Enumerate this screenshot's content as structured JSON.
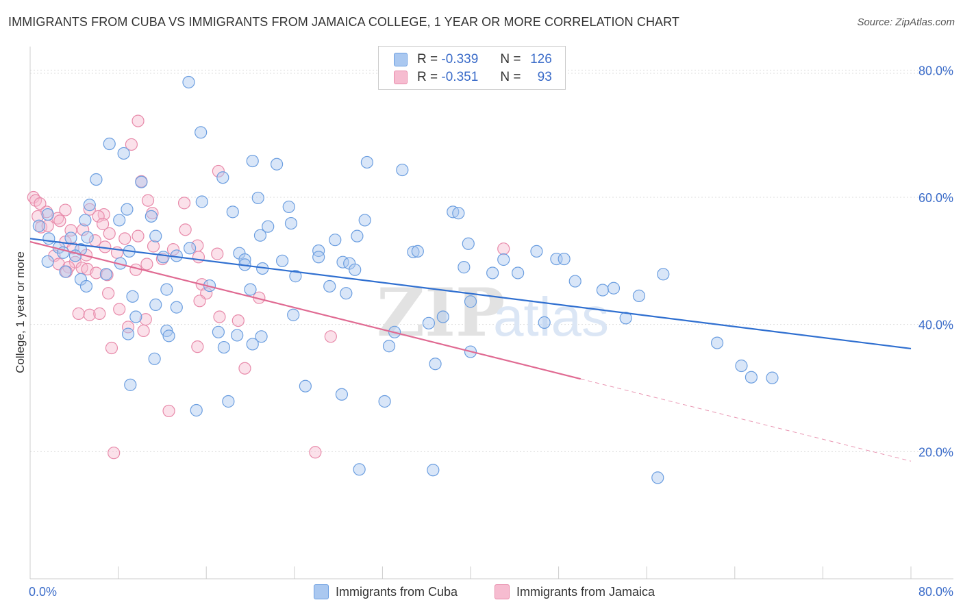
{
  "title": "IMMIGRANTS FROM CUBA VS IMMIGRANTS FROM JAMAICA COLLEGE, 1 YEAR OR MORE CORRELATION CHART",
  "source": "Source: ZipAtlas.com",
  "watermark": {
    "zip": "ZIP",
    "atlas": "atlas"
  },
  "legend": {
    "cuba": {
      "r_label": "R =",
      "r_value": "-0.339",
      "n_label": "N =",
      "n_value": "126"
    },
    "jamaica": {
      "r_label": "R =",
      "r_value": "-0.351",
      "n_label": "N =",
      "n_value": "93"
    }
  },
  "bottom_legend": {
    "cuba": "Immigrants from Cuba",
    "jamaica": "Immigrants from Jamaica"
  },
  "colors": {
    "cuba_fill": "#aac8f0",
    "cuba_stroke": "#6b9ee0",
    "cuba_line": "#2f6fd0",
    "jamaica_fill": "#f6bcd0",
    "jamaica_stroke": "#e88aaa",
    "jamaica_line": "#e06a92",
    "axis_text": "#3b6cc9",
    "grid": "#dddddd"
  },
  "chart_data": {
    "type": "scatter",
    "title": "IMMIGRANTS FROM CUBA VS IMMIGRANTS FROM JAMAICA COLLEGE, 1 YEAR OR MORE CORRELATION CHART",
    "xlabel": "",
    "ylabel": "College, 1 year or more",
    "xlim": [
      0,
      80
    ],
    "ylim": [
      0,
      85
    ],
    "x_tick_labels": [
      "0.0%",
      "80.0%"
    ],
    "y_ticks": [
      20,
      40,
      60,
      80
    ],
    "y_tick_labels": [
      "20.0%",
      "40.0%",
      "60.0%",
      "80.0%"
    ],
    "legend_position": "top-center",
    "series": [
      {
        "name": "Immigrants from Cuba",
        "r": -0.339,
        "n": 126,
        "trend": {
          "x": [
            0,
            80
          ],
          "y": [
            53.5,
            36.2
          ],
          "dashed_from": null
        },
        "points": [
          [
            14.4,
            78.1
          ],
          [
            15.5,
            70.2
          ],
          [
            7.2,
            68.4
          ],
          [
            8.5,
            66.9
          ],
          [
            20.2,
            65.7
          ],
          [
            22.4,
            65.2
          ],
          [
            30.6,
            65.5
          ],
          [
            33.8,
            64.3
          ],
          [
            17.5,
            63.1
          ],
          [
            6.0,
            62.8
          ],
          [
            10.1,
            62.4
          ],
          [
            20.7,
            59.9
          ],
          [
            15.6,
            59.3
          ],
          [
            23.5,
            58.5
          ],
          [
            5.4,
            58.8
          ],
          [
            8.8,
            58.1
          ],
          [
            18.4,
            57.7
          ],
          [
            38.4,
            57.7
          ],
          [
            38.9,
            57.5
          ],
          [
            1.6,
            57.3
          ],
          [
            11.0,
            57.0
          ],
          [
            5.0,
            56.4
          ],
          [
            8.1,
            56.4
          ],
          [
            30.4,
            56.4
          ],
          [
            23.7,
            55.9
          ],
          [
            21.6,
            55.4
          ],
          [
            0.8,
            55.5
          ],
          [
            11.4,
            53.9
          ],
          [
            20.9,
            54.0
          ],
          [
            29.7,
            53.9
          ],
          [
            27.7,
            53.3
          ],
          [
            1.7,
            53.5
          ],
          [
            3.7,
            53.6
          ],
          [
            5.2,
            53.7
          ],
          [
            39.8,
            52.7
          ],
          [
            2.6,
            52.1
          ],
          [
            4.6,
            51.8
          ],
          [
            9.0,
            51.5
          ],
          [
            14.5,
            52.0
          ],
          [
            19.0,
            51.2
          ],
          [
            26.2,
            51.6
          ],
          [
            34.8,
            51.4
          ],
          [
            35.2,
            51.5
          ],
          [
            46.0,
            51.5
          ],
          [
            3.0,
            51.3
          ],
          [
            4.1,
            50.8
          ],
          [
            12.1,
            50.6
          ],
          [
            13.3,
            50.8
          ],
          [
            19.5,
            50.2
          ],
          [
            22.9,
            50.0
          ],
          [
            26.2,
            50.6
          ],
          [
            28.4,
            49.8
          ],
          [
            43.0,
            50.2
          ],
          [
            47.8,
            50.3
          ],
          [
            48.5,
            50.3
          ],
          [
            1.6,
            49.9
          ],
          [
            8.2,
            49.6
          ],
          [
            19.5,
            49.4
          ],
          [
            21.1,
            48.8
          ],
          [
            29.0,
            49.6
          ],
          [
            29.5,
            48.6
          ],
          [
            39.4,
            49.0
          ],
          [
            42.0,
            48.1
          ],
          [
            44.3,
            48.1
          ],
          [
            57.5,
            47.9
          ],
          [
            3.2,
            48.3
          ],
          [
            6.9,
            47.9
          ],
          [
            24.1,
            47.6
          ],
          [
            49.5,
            46.8
          ],
          [
            4.6,
            47.1
          ],
          [
            5.1,
            46.0
          ],
          [
            12.4,
            45.5
          ],
          [
            16.3,
            46.1
          ],
          [
            20.0,
            45.5
          ],
          [
            27.2,
            46.0
          ],
          [
            28.7,
            44.9
          ],
          [
            52.0,
            45.4
          ],
          [
            53.0,
            45.7
          ],
          [
            55.3,
            44.5
          ],
          [
            9.3,
            44.4
          ],
          [
            11.4,
            43.1
          ],
          [
            13.3,
            42.7
          ],
          [
            40.0,
            43.6
          ],
          [
            23.9,
            41.5
          ],
          [
            9.6,
            41.2
          ],
          [
            37.5,
            41.2
          ],
          [
            36.2,
            40.2
          ],
          [
            46.7,
            40.3
          ],
          [
            54.1,
            41.0
          ],
          [
            12.4,
            39.0
          ],
          [
            17.1,
            38.8
          ],
          [
            33.1,
            38.8
          ],
          [
            8.9,
            38.5
          ],
          [
            12.6,
            38.2
          ],
          [
            18.8,
            38.3
          ],
          [
            21.0,
            38.1
          ],
          [
            32.6,
            36.6
          ],
          [
            20.2,
            36.9
          ],
          [
            17.6,
            36.4
          ],
          [
            11.3,
            34.6
          ],
          [
            36.8,
            33.8
          ],
          [
            40.0,
            35.7
          ],
          [
            62.4,
            37.1
          ],
          [
            64.6,
            33.5
          ],
          [
            65.5,
            31.7
          ],
          [
            67.4,
            31.6
          ],
          [
            9.1,
            30.5
          ],
          [
            25.0,
            30.3
          ],
          [
            28.3,
            29.0
          ],
          [
            18.0,
            27.9
          ],
          [
            32.2,
            27.9
          ],
          [
            15.1,
            26.5
          ],
          [
            29.9,
            17.2
          ],
          [
            36.6,
            17.1
          ],
          [
            57.0,
            15.9
          ]
        ]
      },
      {
        "name": "Immigrants from Jamaica",
        "r": -0.351,
        "n": 93,
        "trend": {
          "x": [
            0,
            80
          ],
          "y": [
            53.0,
            18.5
          ],
          "dashed_from": 50
        },
        "points": [
          [
            9.8,
            72.0
          ],
          [
            9.2,
            68.3
          ],
          [
            10.1,
            62.5
          ],
          [
            17.1,
            64.1
          ],
          [
            0.3,
            60.0
          ],
          [
            0.5,
            59.5
          ],
          [
            0.9,
            59.0
          ],
          [
            10.7,
            59.5
          ],
          [
            14.0,
            59.1
          ],
          [
            1.5,
            57.7
          ],
          [
            3.2,
            58.0
          ],
          [
            5.4,
            58.1
          ],
          [
            6.7,
            57.3
          ],
          [
            6.2,
            57.0
          ],
          [
            11.1,
            57.5
          ],
          [
            0.7,
            57.0
          ],
          [
            2.5,
            56.7
          ],
          [
            2.7,
            56.3
          ],
          [
            6.6,
            55.8
          ],
          [
            1.0,
            55.3
          ],
          [
            1.6,
            55.5
          ],
          [
            3.7,
            54.8
          ],
          [
            4.8,
            54.9
          ],
          [
            7.2,
            54.3
          ],
          [
            9.8,
            53.9
          ],
          [
            8.6,
            53.5
          ],
          [
            14.1,
            54.9
          ],
          [
            5.9,
            53.2
          ],
          [
            3.2,
            53.0
          ],
          [
            11.2,
            52.3
          ],
          [
            15.2,
            52.4
          ],
          [
            6.8,
            52.2
          ],
          [
            3.9,
            52.0
          ],
          [
            13.0,
            51.8
          ],
          [
            17.0,
            51.1
          ],
          [
            2.2,
            50.8
          ],
          [
            5.1,
            50.9
          ],
          [
            7.9,
            51.3
          ],
          [
            43.0,
            51.9
          ],
          [
            15.3,
            50.6
          ],
          [
            12.0,
            50.3
          ],
          [
            4.1,
            49.8
          ],
          [
            2.6,
            49.5
          ],
          [
            10.6,
            49.5
          ],
          [
            3.5,
            49.0
          ],
          [
            4.7,
            48.9
          ],
          [
            5.2,
            48.7
          ],
          [
            9.6,
            48.6
          ],
          [
            3.3,
            48.3
          ],
          [
            6.0,
            48.1
          ],
          [
            7.0,
            47.8
          ],
          [
            15.6,
            46.3
          ],
          [
            16.0,
            44.9
          ],
          [
            7.1,
            44.9
          ],
          [
            15.4,
            43.7
          ],
          [
            20.8,
            44.2
          ],
          [
            4.4,
            41.7
          ],
          [
            5.4,
            41.5
          ],
          [
            8.1,
            42.4
          ],
          [
            6.3,
            41.7
          ],
          [
            17.2,
            41.2
          ],
          [
            10.5,
            40.8
          ],
          [
            18.9,
            40.6
          ],
          [
            8.9,
            39.6
          ],
          [
            10.3,
            39.0
          ],
          [
            27.3,
            38.1
          ],
          [
            7.4,
            36.3
          ],
          [
            15.2,
            36.5
          ],
          [
            19.5,
            33.1
          ],
          [
            12.6,
            26.4
          ],
          [
            7.6,
            19.8
          ],
          [
            25.9,
            19.9
          ]
        ]
      }
    ]
  }
}
